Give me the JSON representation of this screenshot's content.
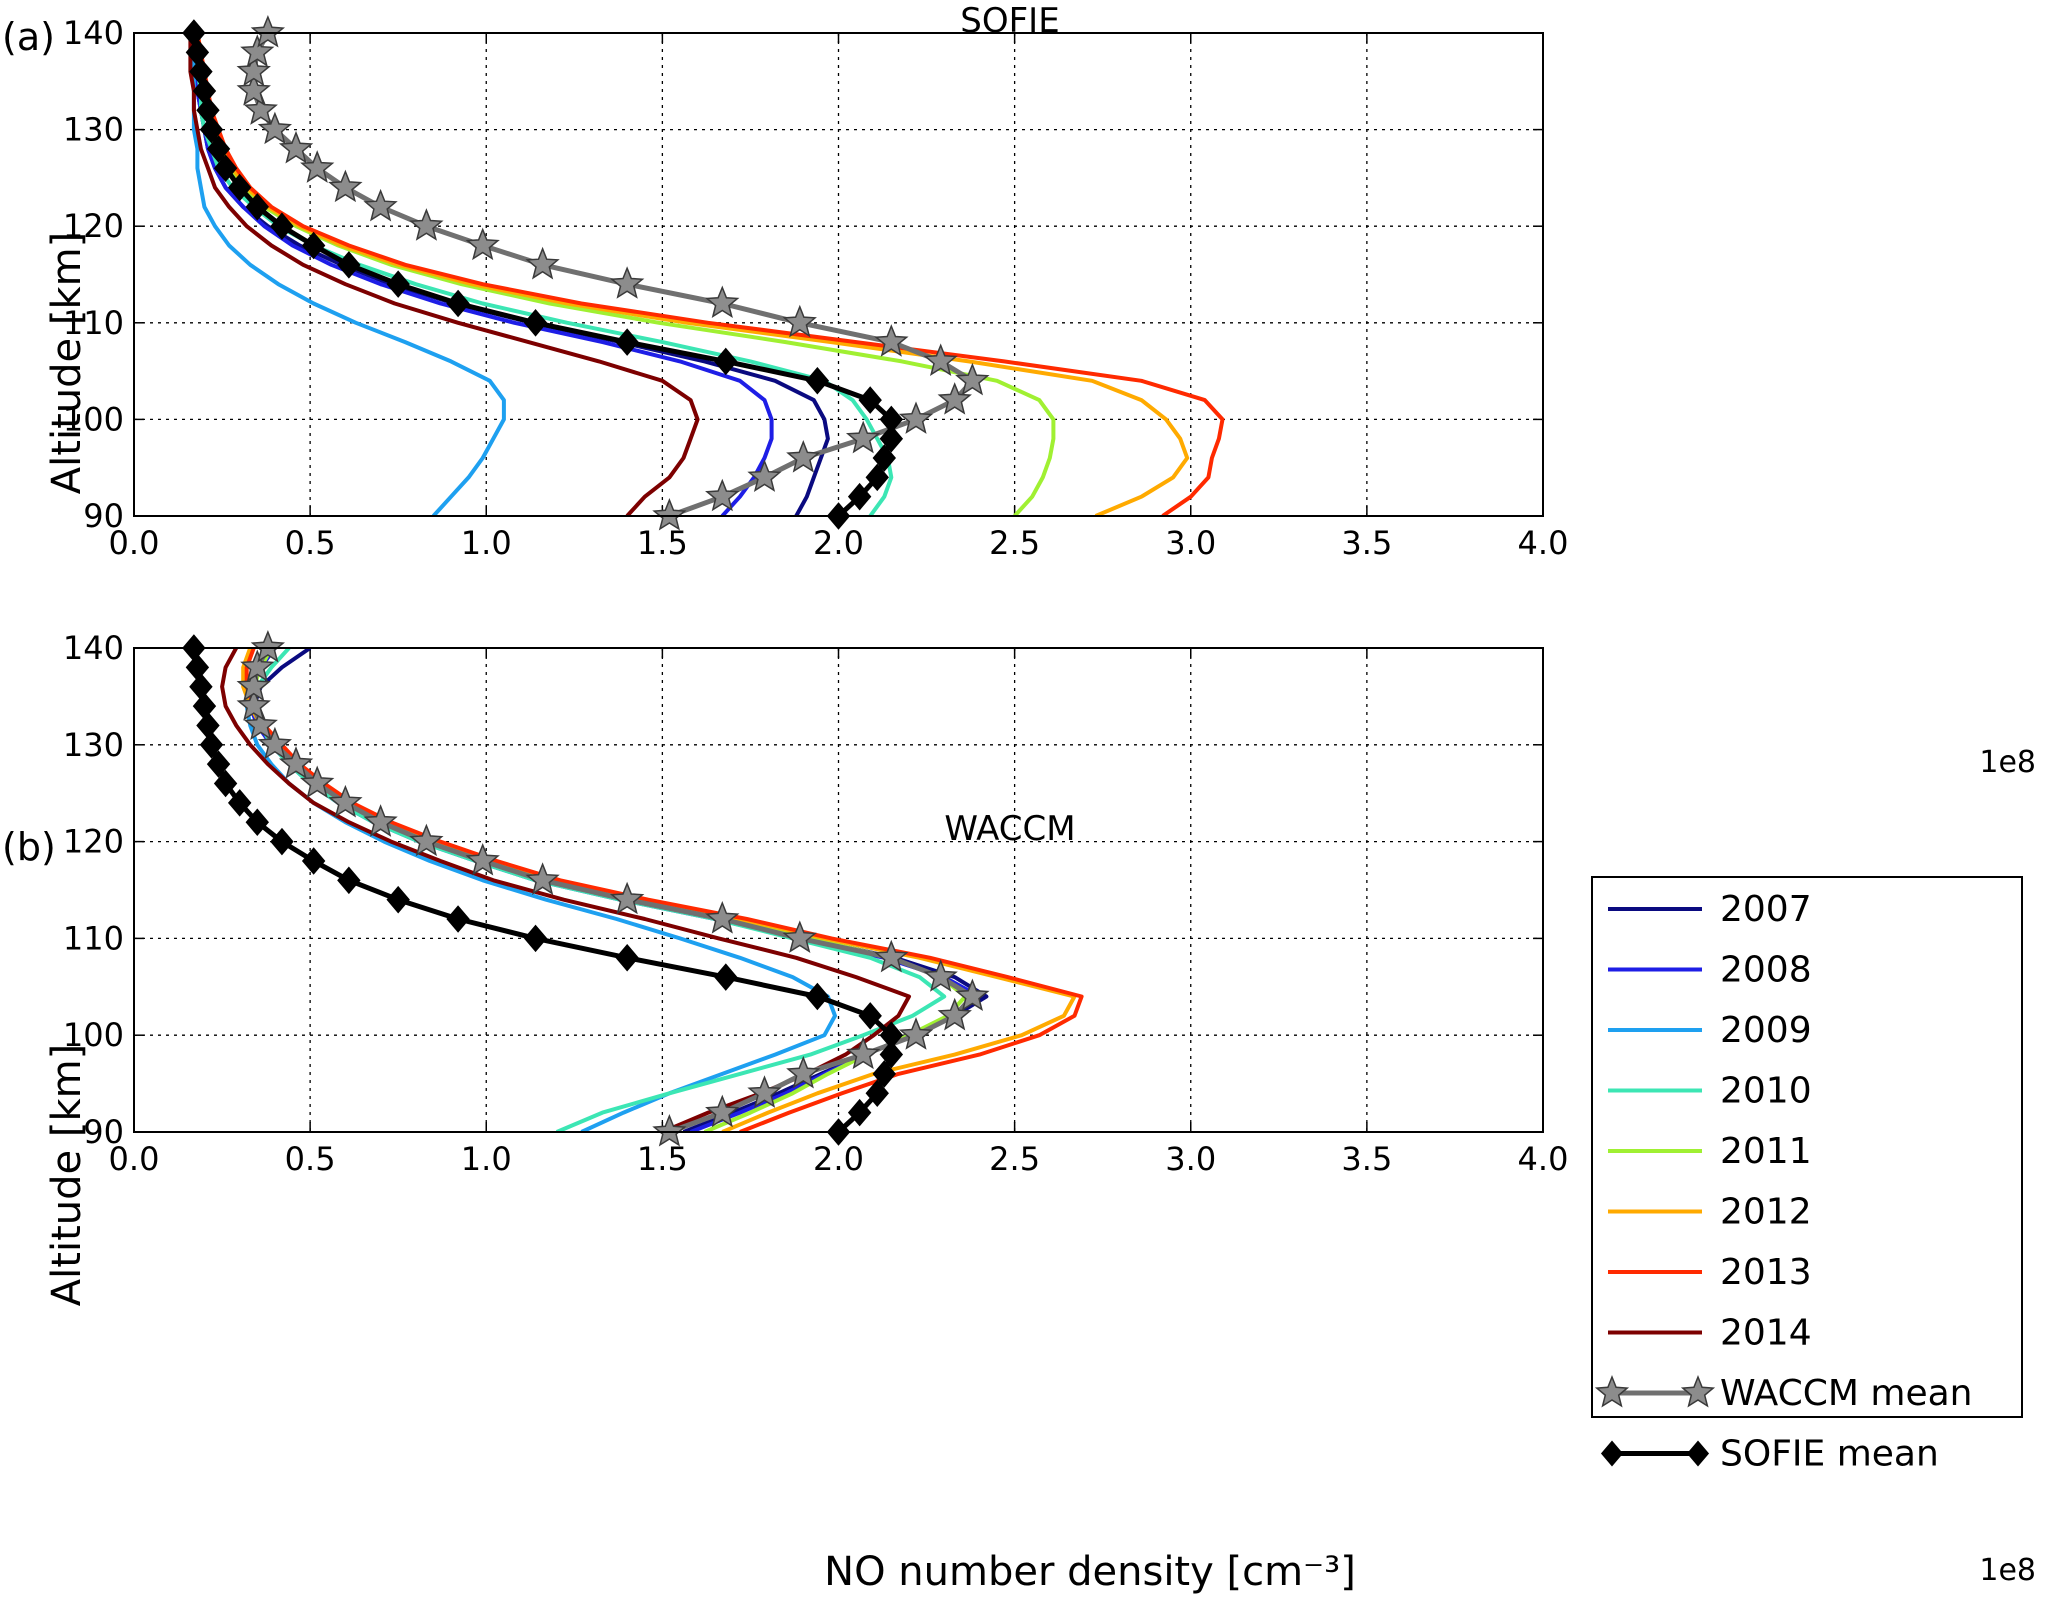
{
  "colors": {
    "2007": "#0a0a80",
    "2008": "#1e1ee6",
    "2009": "#1ea0f0",
    "2010": "#3ce6b4",
    "2011": "#a0f032",
    "2012": "#ffaa00",
    "2013": "#ff2a00",
    "2014": "#7d0000",
    "waccm_mean": "#707070",
    "sofie_mean": "#000000",
    "marker_waccm": "#8c8c8c"
  },
  "x_exponent": "1e8",
  "chart_data": [
    {
      "type": "line",
      "panel_tag": "(a)",
      "title": "SOFIE",
      "xlabel": "",
      "ylabel": "Altitude [km]",
      "xlim": [
        0.0,
        4.0
      ],
      "ylim": [
        90,
        140
      ],
      "grid": true,
      "xticks": [
        "0.0",
        "0.5",
        "1.0",
        "1.5",
        "2.0",
        "2.5",
        "3.0",
        "3.5",
        "4.0"
      ],
      "yticks": [
        "90",
        "100",
        "110",
        "120",
        "130",
        "140"
      ],
      "y": [
        90,
        92,
        94,
        96,
        98,
        100,
        102,
        104,
        106,
        108,
        110,
        112,
        114,
        116,
        118,
        120,
        122,
        124,
        126,
        128,
        130,
        132,
        134,
        136,
        138,
        140
      ],
      "series": [
        {
          "name": "2007",
          "color_key": "2007",
          "x": [
            1.88,
            1.91,
            1.93,
            1.95,
            1.97,
            1.96,
            1.93,
            1.82,
            1.62,
            1.38,
            1.13,
            0.91,
            0.73,
            0.59,
            0.47,
            0.38,
            0.31,
            0.26,
            0.23,
            0.21,
            0.2,
            0.19,
            0.18,
            0.18,
            0.18,
            0.17
          ]
        },
        {
          "name": "2008",
          "color_key": "2008",
          "x": [
            1.67,
            1.72,
            1.76,
            1.79,
            1.81,
            1.81,
            1.79,
            1.72,
            1.55,
            1.33,
            1.08,
            0.87,
            0.7,
            0.56,
            0.45,
            0.37,
            0.31,
            0.26,
            0.23,
            0.21,
            0.2,
            0.19,
            0.18,
            0.18,
            0.18,
            0.17
          ]
        },
        {
          "name": "2009",
          "color_key": "2009",
          "x": [
            0.85,
            0.9,
            0.95,
            0.99,
            1.02,
            1.05,
            1.05,
            1.01,
            0.9,
            0.77,
            0.63,
            0.51,
            0.41,
            0.33,
            0.27,
            0.23,
            0.2,
            0.19,
            0.18,
            0.18,
            0.17,
            0.17,
            0.17,
            0.17,
            0.17,
            0.17
          ]
        },
        {
          "name": "2010",
          "color_key": "2010",
          "x": [
            2.09,
            2.13,
            2.15,
            2.14,
            2.11,
            2.08,
            2.04,
            1.96,
            1.75,
            1.5,
            1.23,
            0.99,
            0.8,
            0.64,
            0.51,
            0.41,
            0.34,
            0.28,
            0.24,
            0.22,
            0.2,
            0.19,
            0.19,
            0.18,
            0.18,
            0.18
          ]
        },
        {
          "name": "2011",
          "color_key": "2011",
          "x": [
            2.5,
            2.55,
            2.58,
            2.6,
            2.61,
            2.61,
            2.57,
            2.45,
            2.18,
            1.85,
            1.49,
            1.18,
            0.93,
            0.73,
            0.58,
            0.46,
            0.37,
            0.31,
            0.27,
            0.24,
            0.22,
            0.21,
            0.2,
            0.19,
            0.18,
            0.18
          ]
        },
        {
          "name": "2012",
          "color_key": "2012",
          "x": [
            2.73,
            2.86,
            2.95,
            2.99,
            2.97,
            2.93,
            2.86,
            2.72,
            2.37,
            1.98,
            1.57,
            1.23,
            0.96,
            0.75,
            0.59,
            0.47,
            0.38,
            0.32,
            0.28,
            0.25,
            0.23,
            0.21,
            0.2,
            0.19,
            0.19,
            0.18
          ]
        },
        {
          "name": "2013",
          "color_key": "2013",
          "x": [
            2.92,
            3.0,
            3.05,
            3.06,
            3.08,
            3.09,
            3.04,
            2.86,
            2.47,
            2.05,
            1.63,
            1.27,
            0.99,
            0.77,
            0.61,
            0.48,
            0.39,
            0.33,
            0.29,
            0.26,
            0.24,
            0.22,
            0.21,
            0.2,
            0.19,
            0.18
          ]
        },
        {
          "name": "2014",
          "color_key": "2014",
          "x": [
            1.4,
            1.45,
            1.52,
            1.56,
            1.58,
            1.6,
            1.58,
            1.5,
            1.32,
            1.12,
            0.92,
            0.74,
            0.6,
            0.48,
            0.39,
            0.32,
            0.27,
            0.23,
            0.21,
            0.19,
            0.18,
            0.17,
            0.17,
            0.16,
            0.16,
            0.16
          ]
        },
        {
          "name": "WACCM mean",
          "color_key": "waccm_mean",
          "marker": "star",
          "x": [
            1.52,
            1.67,
            1.79,
            1.9,
            2.07,
            2.22,
            2.33,
            2.38,
            2.29,
            2.15,
            1.89,
            1.67,
            1.4,
            1.16,
            0.99,
            0.83,
            0.7,
            0.6,
            0.52,
            0.46,
            0.4,
            0.36,
            0.34,
            0.34,
            0.35,
            0.38
          ]
        },
        {
          "name": "SOFIE mean",
          "color_key": "sofie_mean",
          "marker": "diamond",
          "x": [
            2.0,
            2.06,
            2.11,
            2.13,
            2.15,
            2.15,
            2.09,
            1.94,
            1.68,
            1.4,
            1.14,
            0.92,
            0.75,
            0.61,
            0.51,
            0.42,
            0.35,
            0.3,
            0.26,
            0.24,
            0.22,
            0.21,
            0.2,
            0.19,
            0.18,
            0.17
          ]
        }
      ]
    },
    {
      "type": "line",
      "panel_tag": "(b)",
      "title": "WACCM",
      "xlabel": "NO number density [cm⁻³]",
      "ylabel": "Altitude [km]",
      "xlim": [
        0.0,
        4.0
      ],
      "ylim": [
        90,
        140
      ],
      "grid": true,
      "legend_position": "right",
      "xticks": [
        "0.0",
        "0.5",
        "1.0",
        "1.5",
        "2.0",
        "2.5",
        "3.0",
        "3.5",
        "4.0"
      ],
      "yticks": [
        "90",
        "100",
        "110",
        "120",
        "130",
        "140"
      ],
      "y": [
        90,
        92,
        94,
        96,
        98,
        100,
        102,
        104,
        106,
        108,
        110,
        112,
        114,
        116,
        118,
        120,
        122,
        124,
        126,
        128,
        130,
        132,
        134,
        136,
        138,
        140
      ],
      "series": [
        {
          "name": "2007",
          "color_key": "2007",
          "x": [
            1.56,
            1.7,
            1.83,
            1.95,
            2.08,
            2.2,
            2.33,
            2.42,
            2.33,
            2.16,
            1.91,
            1.68,
            1.4,
            1.16,
            0.99,
            0.83,
            0.7,
            0.59,
            0.51,
            0.45,
            0.4,
            0.36,
            0.34,
            0.36,
            0.42,
            0.5
          ]
        },
        {
          "name": "2008",
          "color_key": "2008",
          "x": [
            1.58,
            1.72,
            1.85,
            1.96,
            2.08,
            2.2,
            2.32,
            2.4,
            2.3,
            2.13,
            1.88,
            1.65,
            1.38,
            1.14,
            0.97,
            0.81,
            0.68,
            0.58,
            0.5,
            0.44,
            0.39,
            0.35,
            0.33,
            0.33,
            0.36,
            0.4
          ]
        },
        {
          "name": "2009",
          "color_key": "2009",
          "x": [
            1.27,
            1.39,
            1.52,
            1.67,
            1.82,
            1.96,
            1.99,
            1.97,
            1.87,
            1.72,
            1.55,
            1.37,
            1.17,
            0.99,
            0.84,
            0.71,
            0.6,
            0.51,
            0.44,
            0.39,
            0.35,
            0.33,
            0.32,
            0.33,
            0.35,
            0.38
          ]
        },
        {
          "name": "2010",
          "color_key": "2010",
          "x": [
            1.2,
            1.33,
            1.52,
            1.72,
            1.92,
            2.07,
            2.21,
            2.3,
            2.23,
            2.09,
            1.87,
            1.65,
            1.38,
            1.14,
            0.97,
            0.81,
            0.68,
            0.58,
            0.5,
            0.44,
            0.39,
            0.36,
            0.34,
            0.35,
            0.39,
            0.44
          ]
        },
        {
          "name": "2011",
          "color_key": "2011",
          "x": [
            1.62,
            1.75,
            1.87,
            1.97,
            2.08,
            2.2,
            2.31,
            2.36,
            2.29,
            2.15,
            1.92,
            1.69,
            1.42,
            1.17,
            1.0,
            0.84,
            0.71,
            0.61,
            0.53,
            0.46,
            0.41,
            0.37,
            0.34,
            0.34,
            0.36,
            0.39
          ]
        },
        {
          "name": "2012",
          "color_key": "2012",
          "x": [
            1.67,
            1.8,
            1.94,
            2.1,
            2.33,
            2.52,
            2.64,
            2.67,
            2.45,
            2.23,
            1.96,
            1.72,
            1.44,
            1.19,
            1.01,
            0.85,
            0.72,
            0.61,
            0.53,
            0.46,
            0.41,
            0.36,
            0.33,
            0.31,
            0.31,
            0.33
          ]
        },
        {
          "name": "2013",
          "color_key": "2013",
          "x": [
            1.72,
            1.86,
            2.01,
            2.17,
            2.4,
            2.57,
            2.67,
            2.69,
            2.48,
            2.26,
            1.98,
            1.74,
            1.46,
            1.21,
            1.03,
            0.87,
            0.73,
            0.62,
            0.54,
            0.47,
            0.42,
            0.37,
            0.34,
            0.32,
            0.32,
            0.34
          ]
        },
        {
          "name": "2014",
          "color_key": "2014",
          "x": [
            1.5,
            1.63,
            1.78,
            1.91,
            2.02,
            2.1,
            2.17,
            2.2,
            2.05,
            1.88,
            1.66,
            1.45,
            1.22,
            1.02,
            0.87,
            0.73,
            0.61,
            0.51,
            0.44,
            0.38,
            0.33,
            0.29,
            0.26,
            0.25,
            0.26,
            0.29
          ]
        },
        {
          "name": "WACCM mean",
          "color_key": "waccm_mean",
          "marker": "star",
          "x": [
            1.52,
            1.67,
            1.79,
            1.9,
            2.07,
            2.22,
            2.33,
            2.38,
            2.29,
            2.15,
            1.89,
            1.67,
            1.4,
            1.16,
            0.99,
            0.83,
            0.7,
            0.6,
            0.52,
            0.46,
            0.4,
            0.36,
            0.34,
            0.34,
            0.35,
            0.38
          ]
        },
        {
          "name": "SOFIE mean",
          "color_key": "sofie_mean",
          "marker": "diamond",
          "x": [
            2.0,
            2.06,
            2.11,
            2.13,
            2.15,
            2.15,
            2.09,
            1.94,
            1.68,
            1.4,
            1.14,
            0.92,
            0.75,
            0.61,
            0.51,
            0.42,
            0.35,
            0.3,
            0.26,
            0.24,
            0.22,
            0.21,
            0.2,
            0.19,
            0.18,
            0.17
          ]
        }
      ]
    }
  ]
}
